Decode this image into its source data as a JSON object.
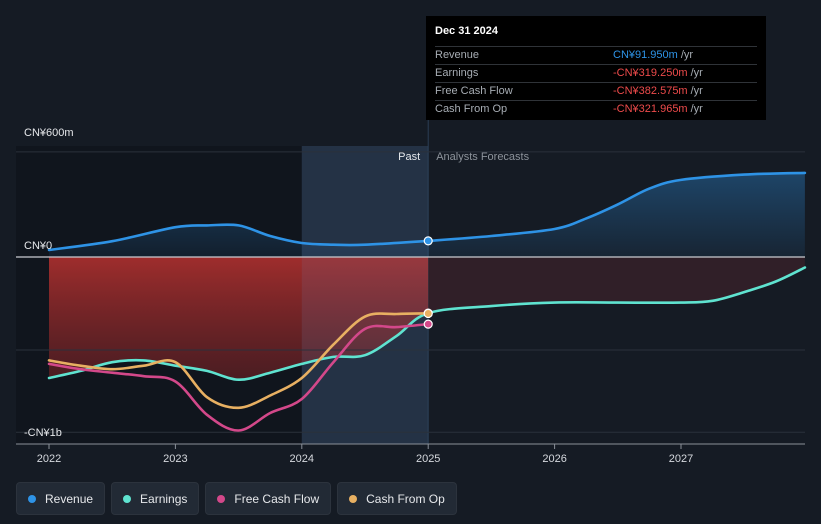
{
  "colors": {
    "background": "#151b24",
    "revenue": "#2e93e6",
    "earnings": "#5fe3d0",
    "free_cash_flow": "#d3488a",
    "cash_from_op": "#e8b062",
    "past_region": "#1d2838",
    "axis": "#8a9099"
  },
  "tooltip": {
    "date": "Dec 31 2024",
    "rows": [
      {
        "name": "Revenue",
        "value": "CN¥91.950m",
        "unit": "/yr",
        "color": "#2e93e6"
      },
      {
        "name": "Earnings",
        "value": "-CN¥319.250m",
        "unit": "/yr",
        "color": "#ee4b4b"
      },
      {
        "name": "Free Cash Flow",
        "value": "-CN¥382.575m",
        "unit": "/yr",
        "color": "#ee4b4b"
      },
      {
        "name": "Cash From Op",
        "value": "-CN¥321.965m",
        "unit": "/yr",
        "color": "#ee4b4b"
      }
    ]
  },
  "legend": [
    {
      "label": "Revenue",
      "color": "#2e93e6",
      "icon": "revenue-dot-icon"
    },
    {
      "label": "Earnings",
      "color": "#5fe3d0",
      "icon": "earnings-dot-icon"
    },
    {
      "label": "Free Cash Flow",
      "color": "#d3488a",
      "icon": "free-cash-flow-dot-icon"
    },
    {
      "label": "Cash From Op",
      "color": "#e8b062",
      "icon": "cash-from-op-dot-icon"
    }
  ],
  "chart_data": {
    "type": "line",
    "title": "",
    "xlabel": "",
    "ylabel": "",
    "x_ticks": [
      2022,
      2023,
      2024,
      2025,
      2026,
      2027
    ],
    "x_range": [
      2021.75,
      2027.98
    ],
    "y_ticks": [
      {
        "value": 600,
        "label": "CN¥600m"
      },
      {
        "value": 0,
        "label": "CN¥0"
      },
      {
        "value": -1000,
        "label": "-CN¥1b"
      }
    ],
    "ylim": [
      -1000,
      600
    ],
    "region_labels": {
      "past": "Past",
      "forecast": "Analysts Forecasts"
    },
    "past_end": 2025.0,
    "highlight_start": 2024.0,
    "series": [
      {
        "name": "Revenue",
        "color": "#2e93e6",
        "x": [
          2022.0,
          2022.5,
          2023.0,
          2023.25,
          2023.5,
          2023.75,
          2024.0,
          2024.25,
          2024.5,
          2025.0,
          2025.5,
          2026.0,
          2026.25,
          2026.5,
          2026.75,
          2027.0,
          2027.5,
          2027.98
        ],
        "y": [
          40,
          90,
          170,
          180,
          180,
          120,
          80,
          70,
          70,
          92,
          120,
          160,
          220,
          300,
          390,
          440,
          470,
          480
        ]
      },
      {
        "name": "Earnings",
        "color": "#5fe3d0",
        "x": [
          2022.0,
          2022.25,
          2022.5,
          2022.75,
          2023.0,
          2023.25,
          2023.5,
          2023.75,
          2024.0,
          2024.25,
          2024.5,
          2024.75,
          2025.0,
          2025.5,
          2026.0,
          2026.5,
          2027.0,
          2027.25,
          2027.5,
          2027.75,
          2027.98
        ],
        "y": [
          -690,
          -650,
          -600,
          -590,
          -620,
          -650,
          -700,
          -660,
          -610,
          -570,
          -560,
          -450,
          -320,
          -280,
          -260,
          -260,
          -260,
          -250,
          -200,
          -140,
          -60
        ]
      },
      {
        "name": "Free Cash Flow",
        "color": "#d3488a",
        "x": [
          2022.0,
          2022.25,
          2022.5,
          2022.75,
          2023.0,
          2023.25,
          2023.5,
          2023.75,
          2024.0,
          2024.25,
          2024.5,
          2024.75,
          2025.0
        ],
        "y": [
          -610,
          -640,
          -660,
          -680,
          -710,
          -900,
          -990,
          -890,
          -810,
          -600,
          -410,
          -400,
          -383
        ]
      },
      {
        "name": "Cash From Op",
        "color": "#e8b062",
        "x": [
          2022.0,
          2022.25,
          2022.5,
          2022.75,
          2023.0,
          2023.25,
          2023.5,
          2023.75,
          2024.0,
          2024.25,
          2024.5,
          2024.75,
          2025.0
        ],
        "y": [
          -590,
          -620,
          -640,
          -620,
          -600,
          -800,
          -860,
          -790,
          -690,
          -500,
          -340,
          -325,
          -322
        ]
      }
    ]
  }
}
